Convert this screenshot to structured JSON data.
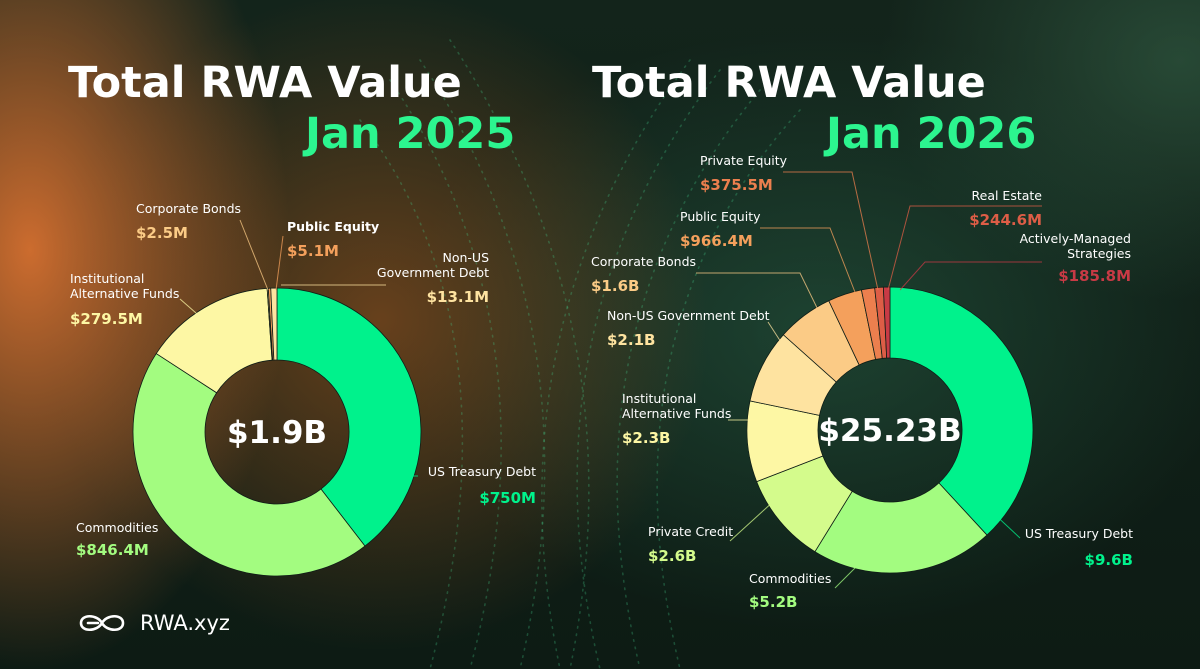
{
  "headlines": {
    "left_title": "Total RWA Value",
    "left_date": "Jan 2025",
    "right_title": "Total RWA Value",
    "right_date": "Jan 2026"
  },
  "brand": {
    "name": "RWA.xyz",
    "icon": "infinity-logo-icon"
  },
  "colors": {
    "US Treasury Debt": "#00f28c",
    "Commodities": "#a3fc80",
    "Private Credit": "#d4fb8c",
    "Institutional Alternative Funds": "#fdf7a4",
    "Non-US Government Debt": "#fee3a0",
    "Corporate Bonds": "#fbcb86",
    "Public Equity": "#f4a05c",
    "Private Equity": "#ec7f4e",
    "Real Estate": "#dd5d46",
    "Actively-Managed Strategies": "#c83a45",
    "accent": "#2cf58f",
    "background": "#102019"
  },
  "chart_data": [
    {
      "type": "pie",
      "title": "Total RWA Value Jan 2025",
      "center_label": "$1.9B",
      "slices": [
        {
          "name": "US Treasury Debt",
          "value": 750,
          "value_label": "$750M"
        },
        {
          "name": "Commodities",
          "value": 846.4,
          "value_label": "$846.4M"
        },
        {
          "name": "Institutional Alternative Funds",
          "value": 279.5,
          "value_label": "$279.5M"
        },
        {
          "name": "Corporate Bonds",
          "value": 2.5,
          "value_label": "$2.5M"
        },
        {
          "name": "Public Equity",
          "value": 5.1,
          "value_label": "$5.1M"
        },
        {
          "name": "Non-US Government Debt",
          "value": 13.1,
          "value_label": "$13.1M"
        }
      ]
    },
    {
      "type": "pie",
      "title": "Total RWA Value Jan 2026",
      "center_label": "$25.23B",
      "slices": [
        {
          "name": "US Treasury Debt",
          "value": 9600,
          "value_label": "$9.6B"
        },
        {
          "name": "Commodities",
          "value": 5200,
          "value_label": "$5.2B"
        },
        {
          "name": "Private Credit",
          "value": 2600,
          "value_label": "$2.6B"
        },
        {
          "name": "Institutional Alternative Funds",
          "value": 2300,
          "value_label": "$2.3B"
        },
        {
          "name": "Non-US Government Debt",
          "value": 2100,
          "value_label": "$2.1B"
        },
        {
          "name": "Corporate Bonds",
          "value": 1600,
          "value_label": "$1.6B"
        },
        {
          "name": "Public Equity",
          "value": 966.4,
          "value_label": "$966.4M"
        },
        {
          "name": "Private Equity",
          "value": 375.5,
          "value_label": "$375.5M"
        },
        {
          "name": "Real Estate",
          "value": 244.6,
          "value_label": "$244.6M"
        },
        {
          "name": "Actively-Managed Strategies",
          "value": 185.8,
          "value_label": "$185.8M"
        }
      ]
    }
  ]
}
